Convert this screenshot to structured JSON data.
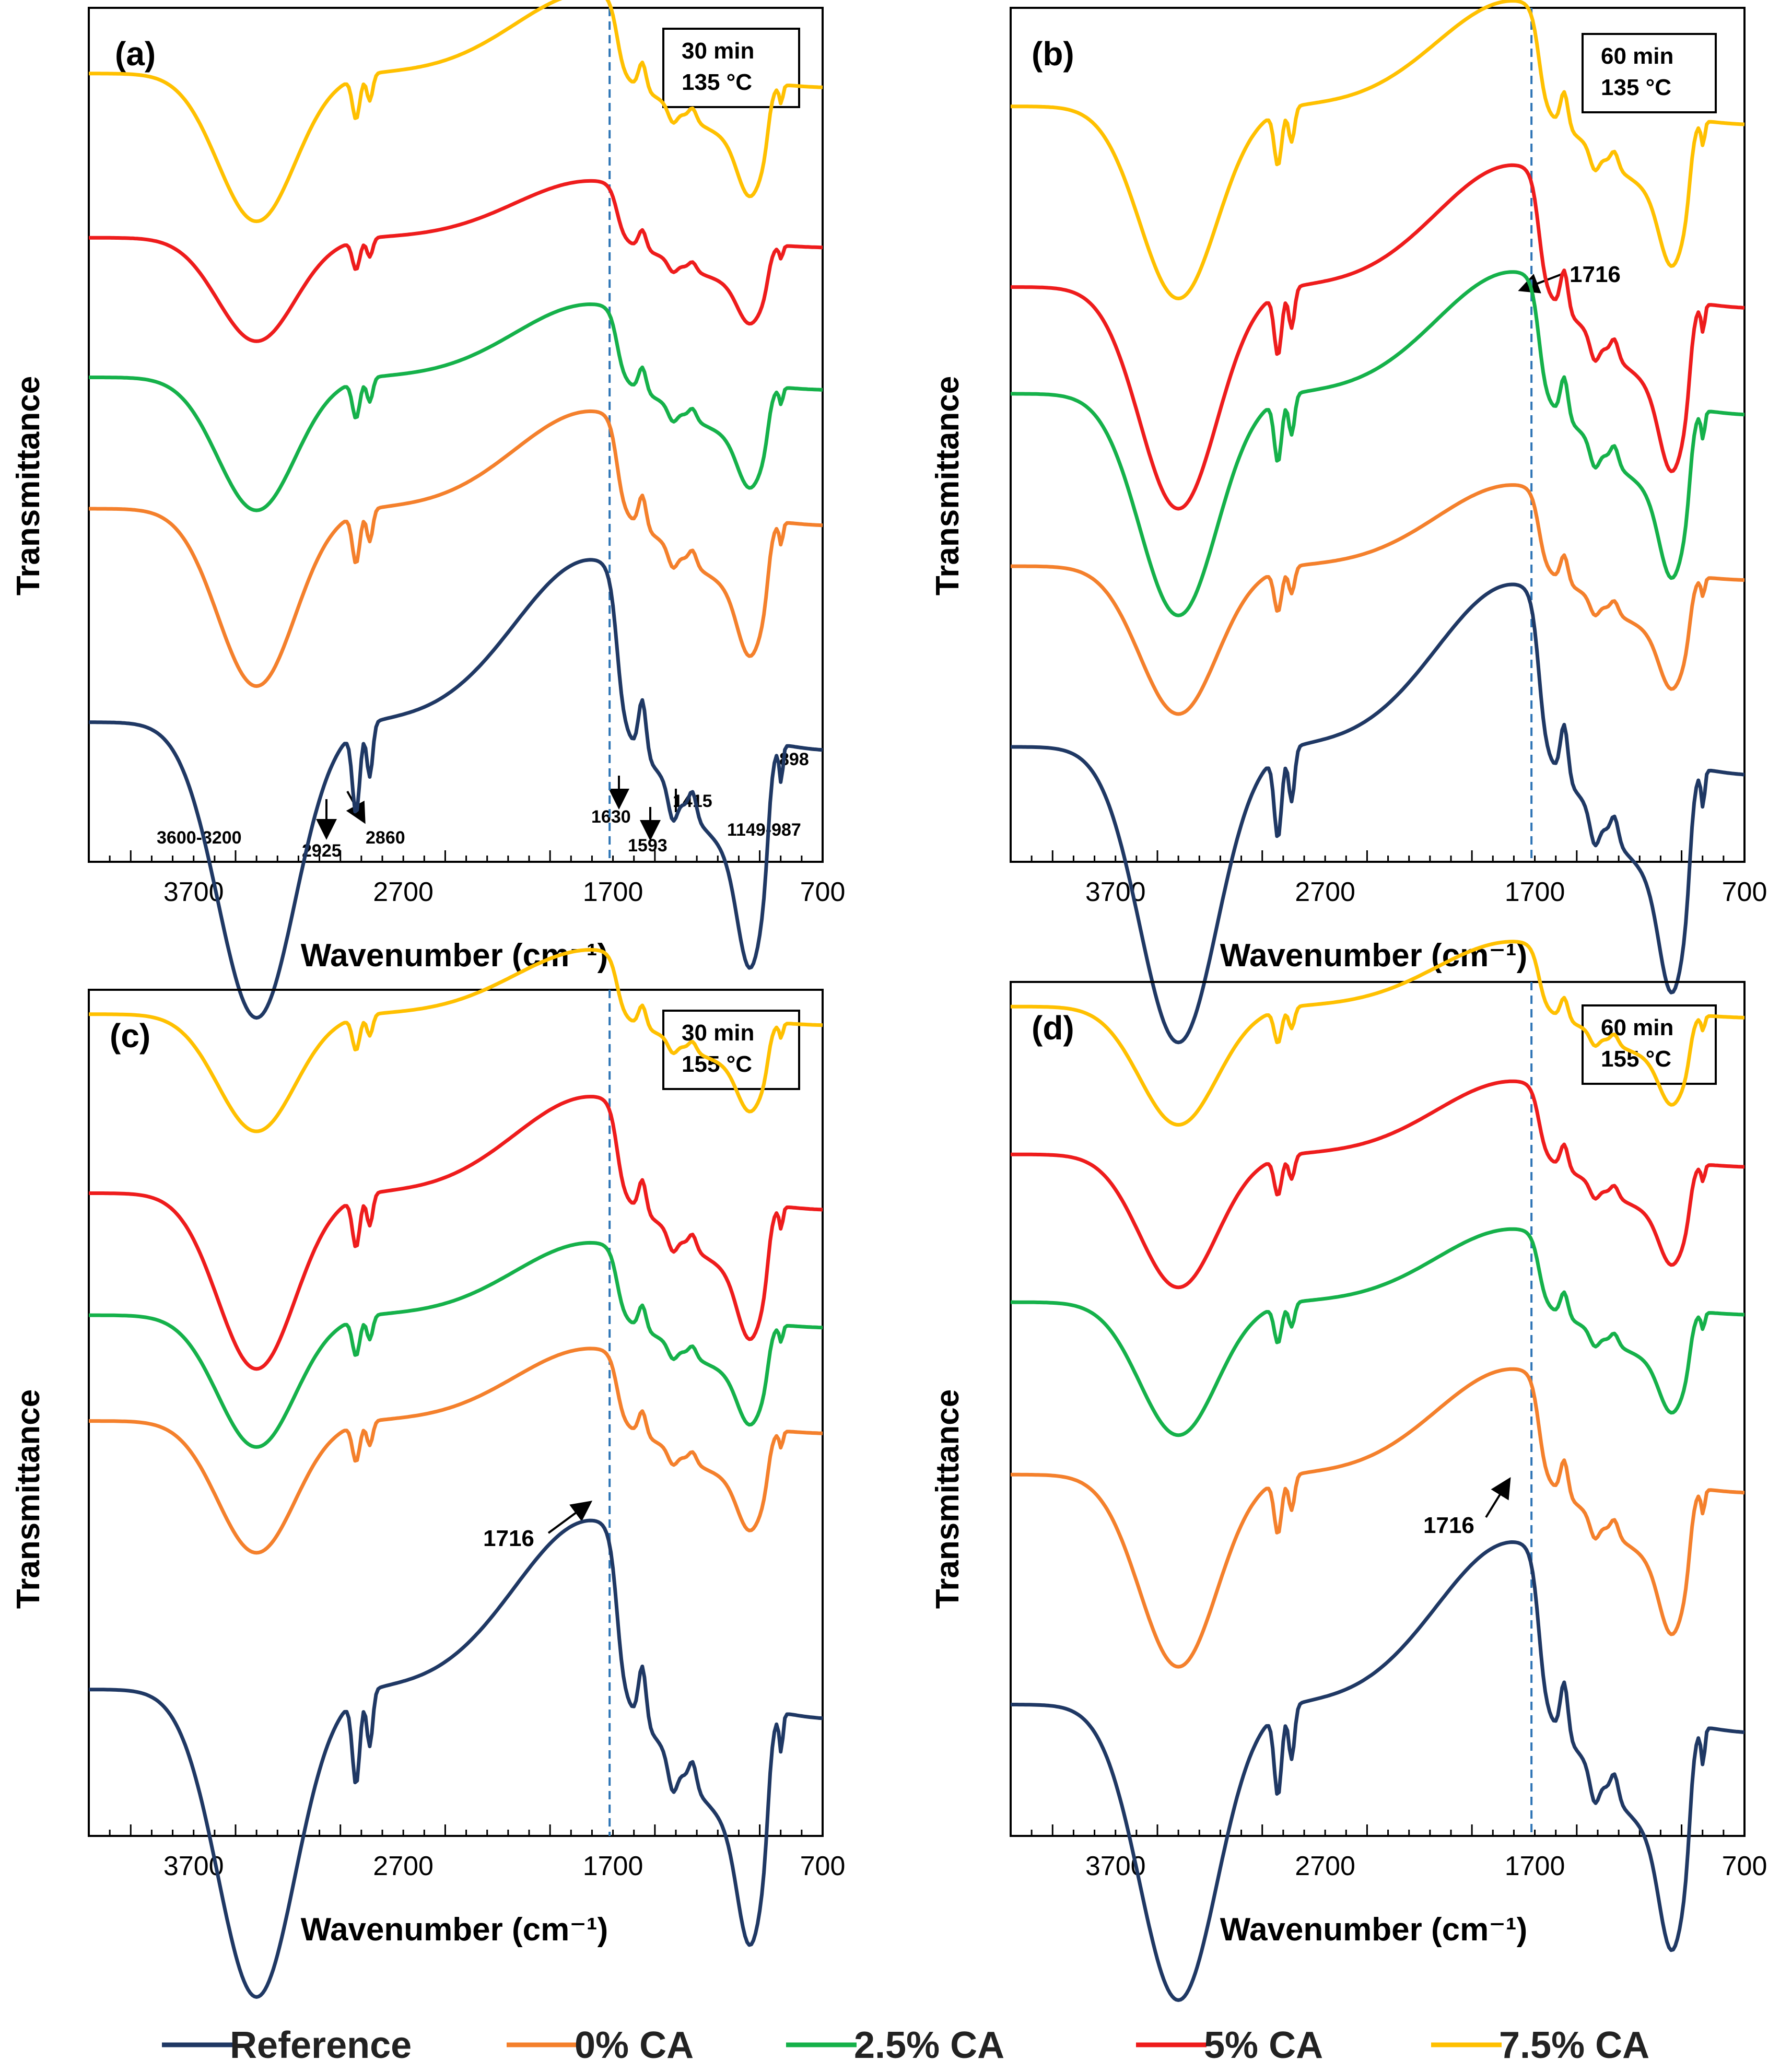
{
  "figure": {
    "xlabel": "Wavenumber (cm⁻¹)",
    "ylabel": "Transmittance"
  },
  "colors": {
    "Reference": "#1f3864",
    "0% CA": "#f4802c",
    "2.5% CA": "#15b14a",
    "5% CA": "#ee1c1c",
    "7.5% CA": "#ffc000",
    "marker_line": "#2e75b6"
  },
  "legend": [
    "Reference",
    "0% CA",
    "2.5% CA",
    "5% CA",
    "7.5% CA"
  ],
  "chart_data": [
    {
      "panel": "(a)",
      "type": "line",
      "condition": [
        "30 min",
        "135 °C"
      ],
      "x_ticks": [
        "3700",
        "2700",
        "1700",
        "700"
      ],
      "xlim": [
        4200,
        700
      ],
      "xlabel": "Wavenumber (cm⁻¹)",
      "ylabel": "Transmittance",
      "marker_wavenumber": 1716,
      "annotations": [
        "3600-3200",
        "2925",
        "2860",
        "1630",
        "1593",
        "1415",
        "1149-987",
        "898"
      ],
      "series": [
        {
          "name": "7.5% CA",
          "offset": 3.6,
          "scale": 1.0
        },
        {
          "name": "5% CA",
          "offset": 2.6,
          "scale": 0.7
        },
        {
          "name": "2.5% CA",
          "offset": 1.75,
          "scale": 0.9
        },
        {
          "name": "0% CA",
          "offset": 0.95,
          "scale": 1.2
        },
        {
          "name": "Reference",
          "offset": -0.35,
          "scale": 2.0
        }
      ]
    },
    {
      "panel": "(b)",
      "type": "line",
      "condition": [
        "60 min",
        "135 °C"
      ],
      "x_ticks": [
        "3700",
        "2700",
        "1700",
        "700"
      ],
      "xlim": [
        4200,
        700
      ],
      "xlabel": "Wavenumber (cm⁻¹)",
      "ylabel": "Transmittance",
      "marker_wavenumber": 1716,
      "annotations": [
        "1716"
      ],
      "series": [
        {
          "name": "7.5% CA",
          "offset": 3.4,
          "scale": 1.3
        },
        {
          "name": "5% CA",
          "offset": 2.3,
          "scale": 1.5
        },
        {
          "name": "2.5% CA",
          "offset": 1.65,
          "scale": 1.5
        },
        {
          "name": "0% CA",
          "offset": 0.6,
          "scale": 1.0
        },
        {
          "name": "Reference",
          "offset": -0.5,
          "scale": 2.0
        }
      ]
    },
    {
      "panel": "(c)",
      "type": "line",
      "condition": [
        "30 min",
        "155 °C"
      ],
      "x_ticks": [
        "3700",
        "2700",
        "1700",
        "700"
      ],
      "xlim": [
        4200,
        700
      ],
      "xlabel": "Wavenumber (cm⁻¹)",
      "ylabel": "Transmittance",
      "marker_wavenumber": 1716,
      "annotations": [
        "1716"
      ],
      "series": [
        {
          "name": "7.5% CA",
          "offset": 3.85,
          "scale": 0.8
        },
        {
          "name": "5% CA",
          "offset": 2.75,
          "scale": 1.2
        },
        {
          "name": "2.5% CA",
          "offset": 2.0,
          "scale": 0.9
        },
        {
          "name": "0% CA",
          "offset": 1.35,
          "scale": 0.9
        },
        {
          "name": "Reference",
          "offset": -0.3,
          "scale": 2.1
        }
      ]
    },
    {
      "panel": "(d)",
      "type": "line",
      "condition": [
        "60 min",
        "155 °C"
      ],
      "x_ticks": [
        "3700",
        "2700",
        "1700",
        "700"
      ],
      "xlim": [
        4200,
        700
      ],
      "xlabel": "Wavenumber (cm⁻¹)",
      "ylabel": "Transmittance",
      "marker_wavenumber": 1716,
      "annotations": [
        "1716"
      ],
      "series": [
        {
          "name": "7.5% CA",
          "offset": 3.85,
          "scale": 0.8
        },
        {
          "name": "5% CA",
          "offset": 2.95,
          "scale": 0.9
        },
        {
          "name": "2.5% CA",
          "offset": 2.05,
          "scale": 0.9
        },
        {
          "name": "0% CA",
          "offset": 1.0,
          "scale": 1.3
        },
        {
          "name": "Reference",
          "offset": -0.4,
          "scale": 2.0
        }
      ]
    }
  ]
}
